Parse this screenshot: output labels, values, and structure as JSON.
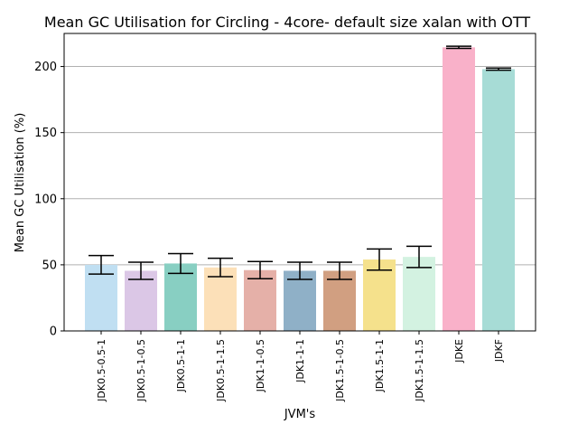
{
  "chart_data": {
    "type": "bar",
    "title": "Mean GC Utilisation for Circling - 4core- default size xalan with OTT",
    "xlabel": "JVM's",
    "ylabel": "Mean GC Utilisation (%)",
    "ylim": [
      0,
      225
    ],
    "yticks": [
      0,
      50,
      100,
      150,
      200
    ],
    "grid": "horizontal",
    "categories": [
      "JDK0.5-0.5-1",
      "JDK0.5-1-0.5",
      "JDK0.5-1-1",
      "JDK0.5-1-1.5",
      "JDK1-1-0.5",
      "JDK1-1-1",
      "JDK1.5-1-0.5",
      "JDK1.5-1-1",
      "JDK1.5-1-1.5",
      "JDKE",
      "JDKF"
    ],
    "values": [
      50,
      45.5,
      51,
      48,
      46,
      45.5,
      45.5,
      54,
      56,
      214.5,
      198
    ],
    "error": [
      7,
      6.5,
      7.5,
      7,
      6.5,
      6.5,
      6.5,
      8,
      8,
      0.8,
      0.8
    ],
    "colors": [
      "#c0dff2",
      "#dbc7e6",
      "#88cfc2",
      "#fce0b8",
      "#e5b0a8",
      "#8fb0c7",
      "#d19f81",
      "#f5e18c",
      "#d3f2e1",
      "#f9b1c9",
      "#a7dcd6"
    ]
  }
}
